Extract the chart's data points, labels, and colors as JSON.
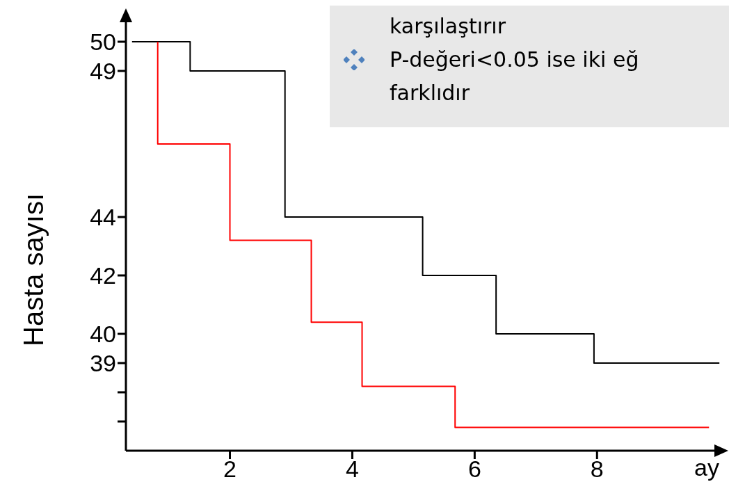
{
  "chart_data": {
    "type": "step",
    "ylabel": "Hasta sayısı",
    "xlabel": "ay",
    "xlim": [
      0.3,
      10.1
    ],
    "xticks": [
      2,
      4,
      6,
      8
    ],
    "ylim": [
      36,
      51
    ],
    "yticks": [
      {
        "value": 37,
        "label": null
      },
      {
        "value": 38,
        "label": null
      },
      39,
      40,
      42,
      44,
      49,
      50
    ],
    "grid": false,
    "legend": false,
    "marker": "none",
    "line_style": "solid",
    "series": [
      {
        "color": "#000000",
        "x": [
          0.4,
          1.35,
          2.9,
          5.15,
          6.35,
          7.95,
          10.0
        ],
        "values": [
          50,
          49,
          44,
          42,
          40,
          39,
          39
        ]
      },
      {
        "color": "#ff0000",
        "x": [
          0.82,
          0.82,
          2.0,
          3.33,
          4.16,
          5.68,
          9.83
        ],
        "values": [
          50,
          46.5,
          43.2,
          40.4,
          38.2,
          36.8,
          36.8
        ]
      }
    ],
    "annotations": [
      "karşılaştırır",
      "P-değeri<0.05 ise iki eğ",
      "farklıdır"
    ]
  }
}
